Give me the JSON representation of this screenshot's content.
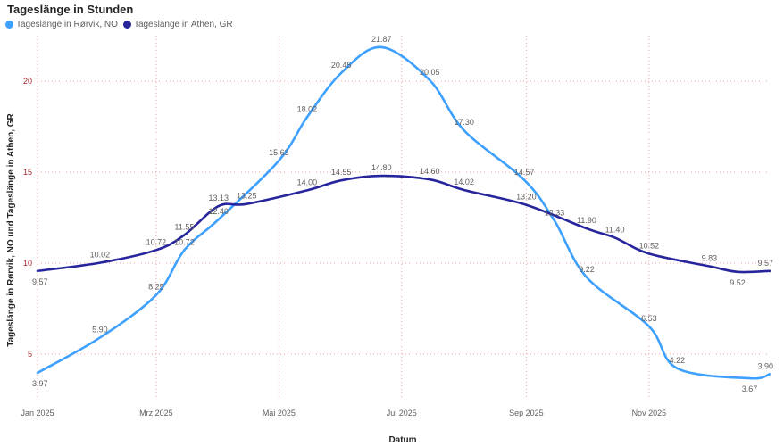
{
  "chart_data": {
    "type": "line",
    "title": "Tageslänge in Stunden",
    "xlabel": "Datum",
    "ylabel": "Tageslänge in Rørvik, NO und Tageslänge in Athen, GR",
    "ylim": [
      2.5,
      22.5
    ],
    "yticks": [
      5,
      10,
      15,
      20
    ],
    "xlim": [
      "2025-01-01",
      "2025-12-31"
    ],
    "xticks": [
      {
        "date": "2025-01-01",
        "label": "Jan 2025"
      },
      {
        "date": "2025-03-01",
        "label": "Mrz 2025"
      },
      {
        "date": "2025-05-01",
        "label": "Mai 2025"
      },
      {
        "date": "2025-07-01",
        "label": "Jul 2025"
      },
      {
        "date": "2025-09-01",
        "label": "Sep 2025"
      },
      {
        "date": "2025-11-01",
        "label": "Nov 2025"
      }
    ],
    "grid": true,
    "legend_position": "top-left",
    "series": [
      {
        "name": "Tageslänge in Rørvik, NO",
        "color": "#3ea0ff",
        "points": [
          {
            "x": "2025-01-01",
            "y": 3.97
          },
          {
            "x": "2025-02-01",
            "y": 5.9
          },
          {
            "x": "2025-03-01",
            "y": 8.25
          },
          {
            "x": "2025-03-15",
            "y": 10.72
          },
          {
            "x": "2025-04-01",
            "y": 12.4
          },
          {
            "x": "2025-05-01",
            "y": 15.63
          },
          {
            "x": "2025-05-15",
            "y": 18.02
          },
          {
            "x": "2025-06-01",
            "y": 20.45
          },
          {
            "x": "2025-06-21",
            "y": 21.87
          },
          {
            "x": "2025-07-15",
            "y": 20.05
          },
          {
            "x": "2025-08-01",
            "y": 17.3
          },
          {
            "x": "2025-08-31",
            "y": 14.57
          },
          {
            "x": "2025-09-15",
            "y": 12.33
          },
          {
            "x": "2025-10-01",
            "y": 9.22
          },
          {
            "x": "2025-11-01",
            "y": 6.53
          },
          {
            "x": "2025-11-15",
            "y": 4.22
          },
          {
            "x": "2025-12-21",
            "y": 3.67
          },
          {
            "x": "2025-12-31",
            "y": 3.9
          }
        ]
      },
      {
        "name": "Tageslänge in Athen, GR",
        "color": "#26259c",
        "points": [
          {
            "x": "2025-01-01",
            "y": 9.57
          },
          {
            "x": "2025-02-01",
            "y": 10.02
          },
          {
            "x": "2025-03-01",
            "y": 10.72
          },
          {
            "x": "2025-03-15",
            "y": 11.55
          },
          {
            "x": "2025-04-01",
            "y": 13.13
          },
          {
            "x": "2025-04-15",
            "y": 13.25
          },
          {
            "x": "2025-05-15",
            "y": 14.0
          },
          {
            "x": "2025-06-01",
            "y": 14.55
          },
          {
            "x": "2025-06-21",
            "y": 14.8
          },
          {
            "x": "2025-07-15",
            "y": 14.6
          },
          {
            "x": "2025-08-01",
            "y": 14.02
          },
          {
            "x": "2025-09-01",
            "y": 13.2
          },
          {
            "x": "2025-10-01",
            "y": 11.9
          },
          {
            "x": "2025-10-15",
            "y": 11.4
          },
          {
            "x": "2025-11-01",
            "y": 10.52
          },
          {
            "x": "2025-12-01",
            "y": 9.83
          },
          {
            "x": "2025-12-15",
            "y": 9.52
          },
          {
            "x": "2025-12-31",
            "y": 9.57
          }
        ]
      }
    ]
  }
}
